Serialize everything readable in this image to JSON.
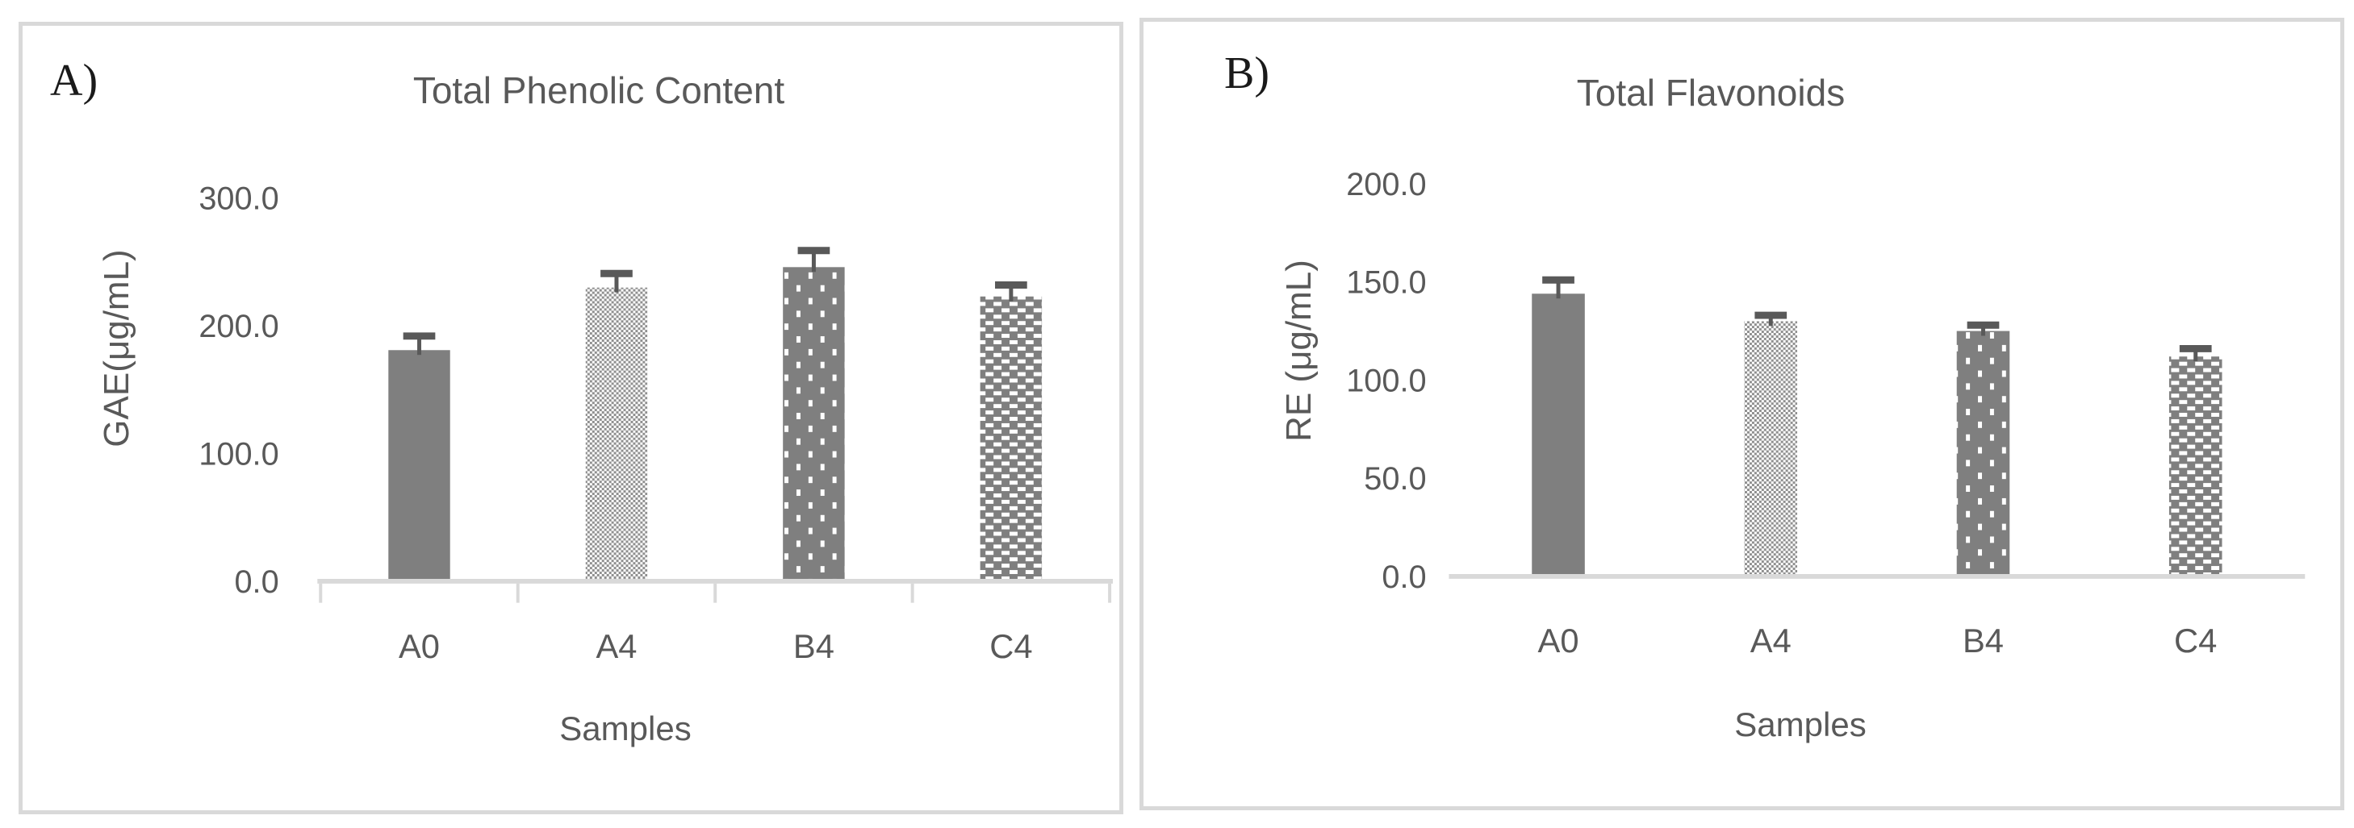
{
  "figure": {
    "background": "#ffffff",
    "panel_border_color": "#d9d9d9",
    "axis_color": "#d9d9d9",
    "text_color": "#595959",
    "corner_label_color": "#1a1a1a",
    "bar_color": "#7f7f7f",
    "error_bar_color": "#595959"
  },
  "panels": [
    {
      "corner_label": "A)",
      "title": "Total Phenolic Content",
      "ylabel": "GAE(μg/mL)",
      "xlabel": "Samples"
    },
    {
      "corner_label": "B)",
      "title": "Total Flavonoids",
      "ylabel": "RE (μg/mL)",
      "xlabel": "Samples"
    }
  ],
  "chart_data": [
    {
      "type": "bar",
      "title": "Total Phenolic Content",
      "xlabel": "Samples",
      "ylabel": "GAE(μg/mL)",
      "categories": [
        "A0",
        "A4",
        "B4",
        "C4"
      ],
      "values": [
        181,
        230,
        246,
        223
      ],
      "errors_plus": [
        11,
        11,
        13,
        9
      ],
      "ylim": [
        0,
        300
      ],
      "ytick_step": 100,
      "ytick_labels": [
        "0.0",
        "100.0",
        "200.0",
        "300.0"
      ],
      "bar_patterns": [
        "solid",
        "checker-light",
        "dots-sparse",
        "dots-dense"
      ],
      "bar_color": "#7f7f7f",
      "error_color": "#595959",
      "axis_color": "#d9d9d9",
      "grid": false,
      "legend": "none",
      "x_ticks_visible": true
    },
    {
      "type": "bar",
      "title": "Total Flavonoids",
      "xlabel": "Samples",
      "ylabel": "RE (μg/mL)",
      "categories": [
        "A0",
        "A4",
        "B4",
        "C4"
      ],
      "values": [
        144,
        130,
        125,
        112
      ],
      "errors_plus": [
        7,
        3,
        3,
        4
      ],
      "ylim": [
        0,
        200
      ],
      "ytick_step": 50,
      "ytick_labels": [
        "0.0",
        "50.0",
        "100.0",
        "150.0",
        "200.0"
      ],
      "bar_patterns": [
        "solid",
        "checker-light",
        "dots-sparse",
        "dots-dense"
      ],
      "bar_color": "#7f7f7f",
      "error_color": "#595959",
      "axis_color": "#d9d9d9",
      "grid": false,
      "legend": "none",
      "x_ticks_visible": false
    }
  ]
}
